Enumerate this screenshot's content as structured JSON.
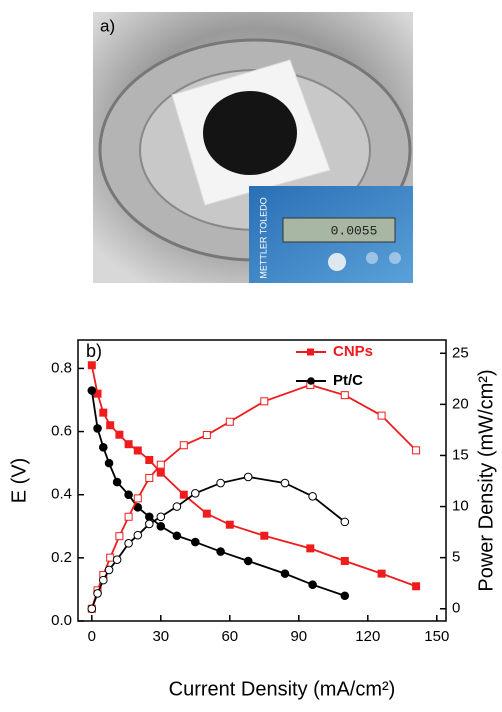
{
  "figure_a": {
    "label": "a)",
    "brand": "METTLER TOLEDO",
    "display": "0.0055"
  },
  "chart_data": {
    "type": "line",
    "panel_label": "b)",
    "xlabel": "Current Density (mA/cm²)",
    "ylabel": "E (V)",
    "y2label": "Power Density (mW/cm²)",
    "xlim": [
      -6,
      154
    ],
    "xticks": [
      0,
      30,
      60,
      90,
      120,
      150
    ],
    "ylim": [
      0,
      0.89
    ],
    "yticks": [
      {
        "value": 0,
        "label": "0.0"
      },
      {
        "value": 0.2,
        "label": "0.2"
      },
      {
        "value": 0.4,
        "label": "0.4"
      },
      {
        "value": 0.6,
        "label": "0.6"
      },
      {
        "value": 0.8,
        "label": "0.8"
      }
    ],
    "y2lim": [
      -1.2,
      26.3
    ],
    "y2ticks": [
      0,
      5,
      10,
      15,
      20,
      25
    ],
    "legend": "upper right",
    "series": [
      {
        "name": "CNPs",
        "color": "#ee1c1c",
        "marker": "filled",
        "x": [
          0,
          2.5,
          5,
          8,
          12,
          16,
          20,
          25,
          30,
          40,
          50,
          60,
          75,
          95,
          110,
          126,
          141
        ],
        "values": [
          0.81,
          0.72,
          0.66,
          0.62,
          0.59,
          0.56,
          0.54,
          0.51,
          0.47,
          0.4,
          0.34,
          0.305,
          0.27,
          0.23,
          0.19,
          0.15,
          0.11
        ]
      },
      {
        "name": "Pt/C",
        "color": "#000000",
        "marker": "filled",
        "x": [
          0,
          2.5,
          5,
          7.5,
          11,
          16,
          20,
          25,
          30,
          37,
          45,
          56,
          68,
          84,
          96,
          110
        ],
        "values": [
          0.73,
          0.61,
          0.55,
          0.5,
          0.44,
          0.4,
          0.36,
          0.33,
          0.3,
          0.27,
          0.25,
          0.22,
          0.19,
          0.15,
          0.115,
          0.08
        ]
      },
      {
        "color": "#ee1c1c",
        "marker": "open",
        "axis": "y2",
        "x": [
          0,
          2.5,
          5,
          8,
          12,
          16,
          20,
          25,
          30,
          40,
          50,
          60,
          75,
          95,
          110,
          126,
          141
        ],
        "values": [
          0,
          1.8,
          3.3,
          5,
          7.1,
          9,
          10.8,
          12.8,
          14.1,
          16,
          17,
          18.3,
          20.3,
          21.9,
          20.9,
          18.9,
          15.5
        ]
      },
      {
        "color": "#000000",
        "marker": "open",
        "axis": "y2",
        "x": [
          0,
          2.5,
          5,
          7.5,
          11,
          16,
          20,
          25,
          30,
          37,
          45,
          56,
          68,
          84,
          96,
          110
        ],
        "values": [
          0,
          1.5,
          2.8,
          3.8,
          4.8,
          6.4,
          7.2,
          8.3,
          9,
          10,
          11.3,
          12.3,
          12.9,
          12.3,
          11,
          8.5
        ]
      }
    ]
  }
}
